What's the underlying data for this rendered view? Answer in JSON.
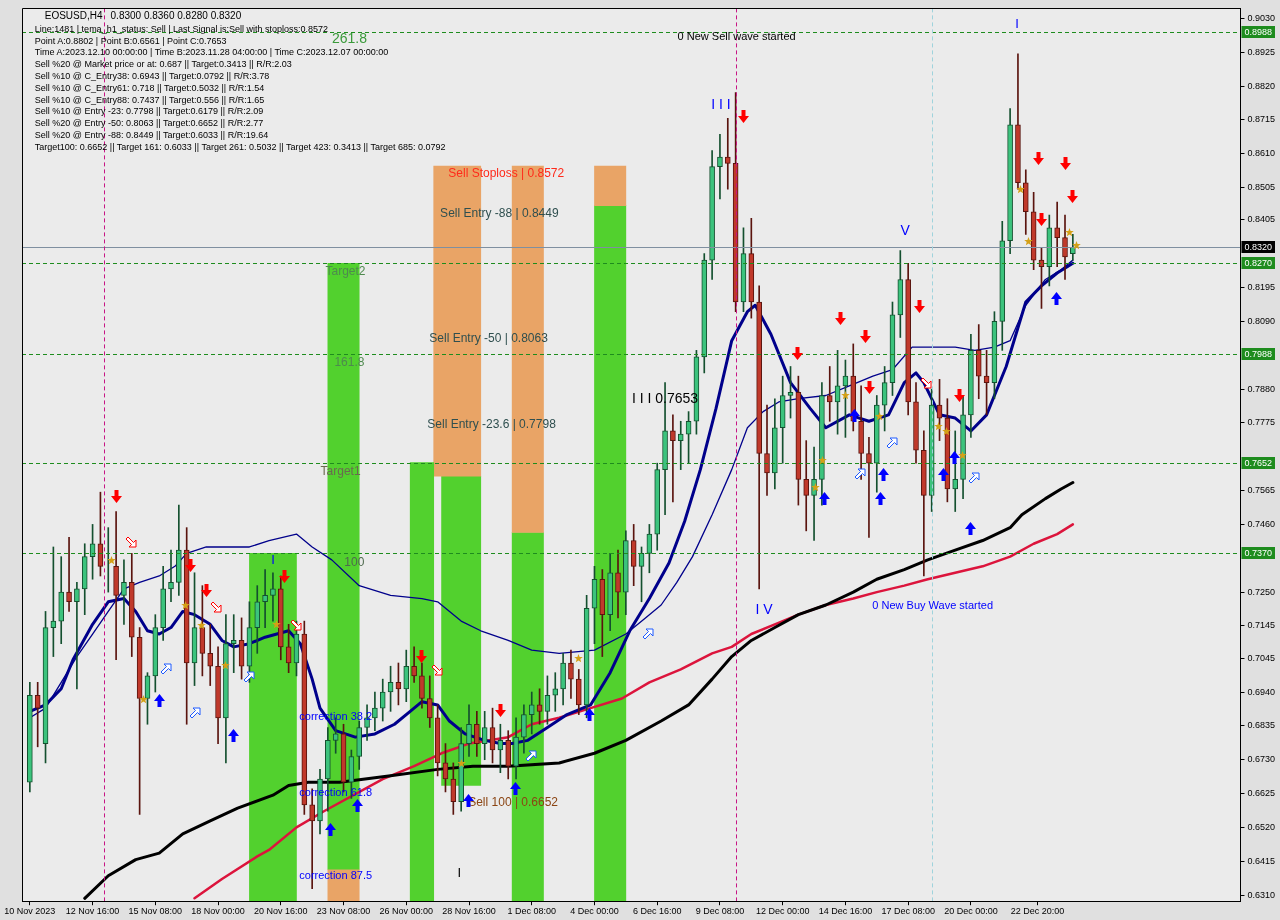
{
  "chart_data": {
    "type": "candlestick",
    "title": "EOSUSD,H4",
    "subtitle": "0.8300 0.8360 0.8280 0.8320",
    "x": [
      "2023-11-10T00:00",
      "2023-11-10T08:00",
      "2023-11-10T16:00",
      "2023-11-11T00:00",
      "2023-11-11T08:00",
      "2023-11-11T16:00",
      "2023-11-12T00:00",
      "2023-11-12T08:00",
      "2023-11-12T16:00",
      "2023-11-13T00:00",
      "2023-11-13T08:00",
      "2023-11-13T16:00",
      "2023-11-14T00:00",
      "2023-11-14T08:00",
      "2023-11-14T16:00",
      "2023-11-15T00:00",
      "2023-11-15T08:00",
      "2023-11-15T16:00",
      "2023-11-16T00:00",
      "2023-11-16T08:00",
      "2023-11-16T16:00",
      "2023-11-17T00:00",
      "2023-11-17T08:00",
      "2023-11-17T16:00",
      "2023-11-18T00:00",
      "2023-11-18T08:00",
      "2023-11-18T16:00",
      "2023-11-19T00:00",
      "2023-11-19T08:00",
      "2023-11-19T16:00",
      "2023-11-20T00:00",
      "2023-11-20T08:00",
      "2023-11-20T16:00",
      "2023-11-21T00:00",
      "2023-11-21T08:00",
      "2023-11-21T16:00",
      "2023-11-22T00:00",
      "2023-11-22T08:00",
      "2023-11-22T16:00",
      "2023-11-23T00:00",
      "2023-11-23T08:00",
      "2023-11-23T16:00",
      "2023-11-24T00:00",
      "2023-11-24T08:00",
      "2023-11-24T16:00",
      "2023-11-25T00:00",
      "2023-11-25T08:00",
      "2023-11-25T16:00",
      "2023-11-26T00:00",
      "2023-11-26T08:00",
      "2023-11-26T16:00",
      "2023-11-27T00:00",
      "2023-11-27T08:00",
      "2023-11-27T16:00",
      "2023-11-28T00:00",
      "2023-11-28T08:00",
      "2023-11-28T16:00",
      "2023-11-29T00:00",
      "2023-11-29T08:00",
      "2023-11-29T16:00",
      "2023-11-30T00:00",
      "2023-11-30T08:00",
      "2023-11-30T16:00",
      "2023-12-01T00:00",
      "2023-12-01T08:00",
      "2023-12-01T16:00",
      "2023-12-02T00:00",
      "2023-12-02T08:00",
      "2023-12-02T16:00",
      "2023-12-03T00:00",
      "2023-12-03T08:00",
      "2023-12-03T16:00",
      "2023-12-04T00:00",
      "2023-12-04T08:00",
      "2023-12-04T16:00",
      "2023-12-05T00:00",
      "2023-12-05T08:00",
      "2023-12-05T16:00",
      "2023-12-06T00:00",
      "2023-12-06T08:00",
      "2023-12-06T16:00",
      "2023-12-07T00:00",
      "2023-12-07T08:00",
      "2023-12-07T16:00",
      "2023-12-08T00:00",
      "2023-12-08T08:00",
      "2023-12-08T16:00",
      "2023-12-09T00:00",
      "2023-12-09T08:00",
      "2023-12-09T16:00",
      "2023-12-10T00:00",
      "2023-12-10T08:00",
      "2023-12-10T16:00",
      "2023-12-11T00:00",
      "2023-12-11T08:00",
      "2023-12-11T16:00",
      "2023-12-12T00:00",
      "2023-12-12T08:00",
      "2023-12-12T16:00",
      "2023-12-13T00:00",
      "2023-12-13T08:00",
      "2023-12-13T16:00",
      "2023-12-14T00:00",
      "2023-12-14T08:00",
      "2023-12-14T16:00",
      "2023-12-15T00:00",
      "2023-12-15T08:00",
      "2023-12-15T16:00",
      "2023-12-16T00:00",
      "2023-12-16T08:00",
      "2023-12-16T16:00",
      "2023-12-17T00:00",
      "2023-12-17T08:00",
      "2023-12-17T16:00",
      "2023-12-18T00:00",
      "2023-12-18T08:00",
      "2023-12-18T16:00",
      "2023-12-19T00:00",
      "2023-12-19T08:00",
      "2023-12-19T16:00",
      "2023-12-20T00:00",
      "2023-12-20T08:00",
      "2023-12-20T16:00",
      "2023-12-21T00:00",
      "2023-12-21T08:00",
      "2023-12-21T16:00",
      "2023-12-22T00:00",
      "2023-12-22T08:00",
      "2023-12-22T16:00",
      "2023-12-23T00:00",
      "2023-12-23T08:00",
      "2023-12-23T16:00",
      "2023-12-24T00:00",
      "2023-12-24T08:00"
    ],
    "ohlc": [
      [
        0.666,
        0.697,
        0.663,
        0.693
      ],
      [
        0.693,
        0.697,
        0.677,
        0.689
      ],
      [
        0.678,
        0.719,
        0.672,
        0.714
      ],
      [
        0.714,
        0.739,
        0.705,
        0.716
      ],
      [
        0.716,
        0.736,
        0.709,
        0.725
      ],
      [
        0.725,
        0.742,
        0.719,
        0.722
      ],
      [
        0.722,
        0.728,
        0.695,
        0.726
      ],
      [
        0.726,
        0.74,
        0.718,
        0.736
      ],
      [
        0.736,
        0.746,
        0.729,
        0.74
      ],
      [
        0.74,
        0.756,
        0.73,
        0.733
      ],
      [
        0.733,
        0.745,
        0.725,
        0.733
      ],
      [
        0.733,
        0.75,
        0.704,
        0.724
      ],
      [
        0.724,
        0.735,
        0.715,
        0.728
      ],
      [
        0.728,
        0.737,
        0.705,
        0.711
      ],
      [
        0.711,
        0.714,
        0.656,
        0.692
      ],
      [
        0.692,
        0.7,
        0.684,
        0.699
      ],
      [
        0.699,
        0.718,
        0.694,
        0.714
      ],
      [
        0.714,
        0.733,
        0.71,
        0.726
      ],
      [
        0.726,
        0.738,
        0.722,
        0.728
      ],
      [
        0.728,
        0.752,
        0.724,
        0.738
      ],
      [
        0.738,
        0.745,
        0.684,
        0.703
      ],
      [
        0.703,
        0.731,
        0.696,
        0.714
      ],
      [
        0.714,
        0.727,
        0.699,
        0.706
      ],
      [
        0.706,
        0.715,
        0.696,
        0.702
      ],
      [
        0.702,
        0.708,
        0.678,
        0.686
      ],
      [
        0.686,
        0.718,
        0.672,
        0.709
      ],
      [
        0.709,
        0.718,
        0.7,
        0.71
      ],
      [
        0.71,
        0.717,
        0.698,
        0.702
      ],
      [
        0.702,
        0.722,
        0.697,
        0.714
      ],
      [
        0.714,
        0.727,
        0.706,
        0.722
      ],
      [
        0.722,
        0.732,
        0.714,
        0.724
      ],
      [
        0.724,
        0.731,
        0.716,
        0.726
      ],
      [
        0.726,
        0.73,
        0.704,
        0.708
      ],
      [
        0.708,
        0.715,
        0.7,
        0.703
      ],
      [
        0.703,
        0.716,
        0.699,
        0.712
      ],
      [
        0.712,
        0.716,
        0.656,
        0.659
      ],
      [
        0.659,
        0.664,
        0.633,
        0.654
      ],
      [
        0.654,
        0.67,
        0.65,
        0.667
      ],
      [
        0.667,
        0.683,
        0.657,
        0.679
      ],
      [
        0.679,
        0.686,
        0.675,
        0.681
      ],
      [
        0.681,
        0.684,
        0.663,
        0.666
      ],
      [
        0.666,
        0.676,
        0.661,
        0.674
      ],
      [
        0.674,
        0.685,
        0.67,
        0.683
      ],
      [
        0.683,
        0.69,
        0.679,
        0.686
      ],
      [
        0.686,
        0.694,
        0.682,
        0.689
      ],
      [
        0.689,
        0.698,
        0.685,
        0.694
      ],
      [
        0.694,
        0.702,
        0.688,
        0.697
      ],
      [
        0.697,
        0.703,
        0.69,
        0.695
      ],
      [
        0.695,
        0.707,
        0.691,
        0.702
      ],
      [
        0.702,
        0.708,
        0.697,
        0.699
      ],
      [
        0.699,
        0.703,
        0.689,
        0.692
      ],
      [
        0.692,
        0.699,
        0.683,
        0.686
      ],
      [
        0.686,
        0.69,
        0.668,
        0.672
      ],
      [
        0.672,
        0.678,
        0.663,
        0.667
      ],
      [
        0.667,
        0.672,
        0.656,
        0.66
      ],
      [
        0.66,
        0.683,
        0.657,
        0.678
      ],
      [
        0.678,
        0.69,
        0.674,
        0.684
      ],
      [
        0.684,
        0.688,
        0.674,
        0.678
      ],
      [
        0.678,
        0.688,
        0.673,
        0.683
      ],
      [
        0.683,
        0.689,
        0.672,
        0.676
      ],
      [
        0.676,
        0.684,
        0.669,
        0.679
      ],
      [
        0.679,
        0.682,
        0.667,
        0.671
      ],
      [
        0.671,
        0.686,
        0.667,
        0.68
      ],
      [
        0.68,
        0.69,
        0.675,
        0.687
      ],
      [
        0.687,
        0.694,
        0.681,
        0.69
      ],
      [
        0.69,
        0.695,
        0.684,
        0.688
      ],
      [
        0.688,
        0.699,
        0.684,
        0.693
      ],
      [
        0.693,
        0.7,
        0.688,
        0.695
      ],
      [
        0.695,
        0.706,
        0.69,
        0.703
      ],
      [
        0.703,
        0.707,
        0.692,
        0.698
      ],
      [
        0.698,
        0.701,
        0.687,
        0.69
      ],
      [
        0.69,
        0.724,
        0.686,
        0.72
      ],
      [
        0.72,
        0.733,
        0.709,
        0.729
      ],
      [
        0.729,
        0.732,
        0.705,
        0.718
      ],
      [
        0.718,
        0.737,
        0.713,
        0.731
      ],
      [
        0.731,
        0.738,
        0.717,
        0.725
      ],
      [
        0.725,
        0.744,
        0.718,
        0.741
      ],
      [
        0.741,
        0.746,
        0.727,
        0.733
      ],
      [
        0.733,
        0.739,
        0.722,
        0.737
      ],
      [
        0.737,
        0.746,
        0.731,
        0.743
      ],
      [
        0.743,
        0.765,
        0.738,
        0.763
      ],
      [
        0.763,
        0.79,
        0.749,
        0.775
      ],
      [
        0.775,
        0.78,
        0.753,
        0.772
      ],
      [
        0.772,
        0.778,
        0.763,
        0.774
      ],
      [
        0.774,
        0.781,
        0.765,
        0.778
      ],
      [
        0.778,
        0.8,
        0.774,
        0.798
      ],
      [
        0.798,
        0.83,
        0.793,
        0.828
      ],
      [
        0.828,
        0.862,
        0.822,
        0.857
      ],
      [
        0.857,
        0.867,
        0.847,
        0.86
      ],
      [
        0.86,
        0.872,
        0.85,
        0.858
      ],
      [
        0.858,
        0.88,
        0.812,
        0.815
      ],
      [
        0.815,
        0.838,
        0.812,
        0.83
      ],
      [
        0.83,
        0.841,
        0.81,
        0.815
      ],
      [
        0.815,
        0.82,
        0.726,
        0.768
      ],
      [
        0.768,
        0.783,
        0.755,
        0.762
      ],
      [
        0.762,
        0.785,
        0.757,
        0.776
      ],
      [
        0.776,
        0.792,
        0.765,
        0.786
      ],
      [
        0.786,
        0.795,
        0.779,
        0.787
      ],
      [
        0.787,
        0.792,
        0.752,
        0.76
      ],
      [
        0.76,
        0.772,
        0.744,
        0.755
      ],
      [
        0.755,
        0.77,
        0.741,
        0.76
      ],
      [
        0.76,
        0.79,
        0.752,
        0.786
      ],
      [
        0.786,
        0.795,
        0.778,
        0.784
      ],
      [
        0.784,
        0.8,
        0.774,
        0.789
      ],
      [
        0.789,
        0.797,
        0.773,
        0.792
      ],
      [
        0.792,
        0.802,
        0.775,
        0.778
      ],
      [
        0.778,
        0.789,
        0.76,
        0.768
      ],
      [
        0.768,
        0.773,
        0.742,
        0.765
      ],
      [
        0.765,
        0.786,
        0.756,
        0.783
      ],
      [
        0.783,
        0.795,
        0.775,
        0.79
      ],
      [
        0.79,
        0.815,
        0.786,
        0.811
      ],
      [
        0.811,
        0.831,
        0.804,
        0.822
      ],
      [
        0.822,
        0.827,
        0.78,
        0.784
      ],
      [
        0.784,
        0.79,
        0.765,
        0.769
      ],
      [
        0.769,
        0.775,
        0.73,
        0.755
      ],
      [
        0.755,
        0.788,
        0.75,
        0.783
      ],
      [
        0.783,
        0.791,
        0.772,
        0.779
      ],
      [
        0.779,
        0.785,
        0.753,
        0.757
      ],
      [
        0.757,
        0.775,
        0.75,
        0.76
      ],
      [
        0.76,
        0.786,
        0.754,
        0.78
      ],
      [
        0.78,
        0.805,
        0.773,
        0.8
      ],
      [
        0.8,
        0.808,
        0.785,
        0.792
      ],
      [
        0.792,
        0.8,
        0.78,
        0.79
      ],
      [
        0.79,
        0.812,
        0.785,
        0.809
      ],
      [
        0.809,
        0.84,
        0.8,
        0.834
      ],
      [
        0.834,
        0.875,
        0.83,
        0.87
      ],
      [
        0.87,
        0.892,
        0.85,
        0.852
      ],
      [
        0.852,
        0.856,
        0.836,
        0.843
      ],
      [
        0.843,
        0.849,
        0.825,
        0.828
      ],
      [
        0.828,
        0.832,
        0.813,
        0.826
      ],
      [
        0.826,
        0.842,
        0.82,
        0.838
      ],
      [
        0.838,
        0.846,
        0.826,
        0.835
      ],
      [
        0.835,
        0.842,
        0.822,
        0.829
      ],
      [
        0.83,
        0.836,
        0.828,
        0.832
      ]
    ],
    "series": [
      {
        "type": "bar",
        "color": "#52d12e",
        "x": [
          "2023-11-20T08:00"
        ],
        "base": [
          0.6291
        ],
        "values": [
          0.1079
        ]
      },
      {
        "type": "bar",
        "color": "#52d12e",
        "x": [
          "2023-11-23T08:00"
        ],
        "base": [
          0.639
        ],
        "values": [
          0.188
        ]
      },
      {
        "type": "bar",
        "color": "#e9a466",
        "x": [
          "2023-11-23T08:00"
        ],
        "base": [
          0.6291
        ],
        "values": [
          0.0099
        ]
      },
      {
        "type": "bar",
        "color": "#52d12e",
        "x": [
          "2023-11-26T16:00"
        ],
        "base": [
          0.6291
        ],
        "values": [
          0.1361
        ]
      },
      {
        "type": "bar",
        "color": "#e9a466",
        "x": [
          "2023-11-28T04:00"
        ],
        "base": [
          0.761
        ],
        "values": [
          0.0962
        ]
      },
      {
        "type": "bar",
        "color": "#52d12e",
        "x": [
          "2023-11-28T08:00"
        ],
        "base": [
          0.665
        ],
        "values": [
          0.096
        ]
      },
      {
        "type": "bar",
        "color": "#e9a466",
        "x": [
          "2023-12-01T04:00"
        ],
        "base": [
          0.7435
        ],
        "values": [
          0.1137
        ]
      },
      {
        "type": "bar",
        "color": "#52d12e",
        "x": [
          "2023-12-01T04:00"
        ],
        "base": [
          0.6291
        ],
        "values": [
          0.1144
        ]
      },
      {
        "type": "bar",
        "color": "#e9a466",
        "x": [
          "2023-12-04T16:00"
        ],
        "base": [
          0.8449
        ],
        "values": [
          0.0123
        ]
      },
      {
        "type": "bar",
        "color": "#52d12e",
        "x": [
          "2023-12-04T16:00"
        ],
        "base": [
          0.6291
        ],
        "values": [
          0.2158
        ]
      },
      {
        "type": "line",
        "color": "#00008b",
        "x": [
          "2023-11-10T00:00",
          "2023-11-10T16:00",
          "2023-11-11T08:00",
          "2023-11-11T20:00",
          "2023-11-12T16:00",
          "2023-11-13T08:00",
          "2023-11-14T00:00",
          "2023-11-14T12:00",
          "2023-11-15T00:00",
          "2023-11-15T12:00",
          "2023-11-16T00:00",
          "2023-11-16T12:00",
          "2023-11-17T00:00",
          "2023-11-17T16:00",
          "2023-11-18T04:00",
          "2023-11-18T16:00",
          "2023-11-19T08:00",
          "2023-11-20T00:00",
          "2023-11-21T00:00",
          "2023-11-21T12:00",
          "2023-11-22T00:00",
          "2023-11-22T08:00",
          "2023-11-23T00:00",
          "2023-11-23T20:00",
          "2023-11-24T16:00",
          "2023-11-25T12:00",
          "2023-11-26T04:00",
          "2023-11-26T16:00",
          "2023-11-27T08:00",
          "2023-11-27T20:00",
          "2023-11-28T12:00",
          "2023-11-29T08:00",
          "2023-11-30T00:00",
          "2023-11-30T12:00",
          "2023-12-01T04:00",
          "2023-12-02T00:00",
          "2023-12-02T20:00",
          "2023-12-03T20:00",
          "2023-12-04T16:00",
          "2023-12-05T12:00",
          "2023-12-06T08:00",
          "2023-12-07T04:00",
          "2023-12-07T20:00",
          "2023-12-08T12:00",
          "2023-12-09T04:00",
          "2023-12-09T20:00",
          "2023-12-10T12:00",
          "2023-12-10T20:00",
          "2023-12-11T12:00",
          "2023-12-12T08:00",
          "2023-12-13T04:00",
          "2023-12-13T20:00",
          "2023-12-14T20:00",
          "2023-12-15T16:00",
          "2023-12-16T12:00",
          "2023-12-17T04:00",
          "2023-12-17T16:00",
          "2023-12-18T00:00",
          "2023-12-18T16:00",
          "2023-12-19T08:00",
          "2023-12-20T00:00",
          "2023-12-20T16:00",
          "2023-12-21T12:00",
          "2023-12-22T00:00",
          "2023-12-22T08:00",
          "2023-12-23T00:00",
          "2023-12-23T16:00",
          "2023-12-24T08:00"
        ],
        "values": [
          0.688,
          0.69,
          0.695,
          0.704,
          0.715,
          0.722,
          0.723,
          0.719,
          0.713,
          0.712,
          0.714,
          0.719,
          0.718,
          0.715,
          0.71,
          0.708,
          0.709,
          0.711,
          0.713,
          0.709,
          0.698,
          0.689,
          0.682,
          0.68,
          0.681,
          0.684,
          0.688,
          0.691,
          0.69,
          0.685,
          0.681,
          0.679,
          0.678,
          0.678,
          0.679,
          0.683,
          0.687,
          0.69,
          0.7,
          0.713,
          0.723,
          0.734,
          0.747,
          0.763,
          0.782,
          0.803,
          0.812,
          0.814,
          0.805,
          0.79,
          0.782,
          0.776,
          0.78,
          0.778,
          0.78,
          0.79,
          0.793,
          0.79,
          0.78,
          0.779,
          0.775,
          0.78,
          0.795,
          0.807,
          0.815,
          0.82,
          0.824,
          0.827
        ]
      },
      {
        "type": "line",
        "color": "#00008b",
        "x": [
          "2023-11-10T00:00",
          "2023-11-10T16:00",
          "2023-11-11T08:00",
          "2023-11-12T00:00",
          "2023-11-12T16:00",
          "2023-11-13T08:00",
          "2023-11-14T00:00",
          "2023-11-14T16:00",
          "2023-11-15T12:00",
          "2023-11-16T04:00",
          "2023-11-16T16:00",
          "2023-11-17T12:00",
          "2023-11-18T12:00",
          "2023-11-19T08:00",
          "2023-11-20T04:00",
          "2023-11-21T08:00",
          "2023-11-22T00:00",
          "2023-11-22T20:00",
          "2023-11-24T00:00",
          "2023-11-25T08:00",
          "2023-11-26T16:00",
          "2023-11-27T08:00",
          "2023-11-28T08:00",
          "2023-11-29T04:00",
          "2023-11-30T08:00",
          "2023-12-01T08:00",
          "2023-12-02T12:00",
          "2023-12-04T00:00",
          "2023-12-05T08:00",
          "2023-12-06T04:00",
          "2023-12-06T20:00",
          "2023-12-07T12:00",
          "2023-12-08T04:00",
          "2023-12-09T00:00",
          "2023-12-09T20:00",
          "2023-12-10T12:00",
          "2023-12-11T04:00",
          "2023-12-11T20:00",
          "2023-12-12T16:00",
          "2023-12-13T20:00",
          "2023-12-14T20:00",
          "2023-12-15T20:00",
          "2023-12-16T16:00",
          "2023-12-17T12:00",
          "2023-12-18T12:00",
          "2023-12-19T08:00",
          "2023-12-20T04:00",
          "2023-12-21T00:00",
          "2023-12-21T16:00",
          "2023-12-22T08:00",
          "2023-12-23T04:00",
          "2023-12-23T20:00",
          "2023-12-24T08:00"
        ],
        "values": [
          0.686,
          0.689,
          0.697,
          0.705,
          0.712,
          0.719,
          0.726,
          0.728,
          0.73,
          0.733,
          0.737,
          0.739,
          0.739,
          0.739,
          0.741,
          0.743,
          0.739,
          0.735,
          0.727,
          0.724,
          0.723,
          0.722,
          0.716,
          0.713,
          0.71,
          0.707,
          0.706,
          0.707,
          0.712,
          0.717,
          0.721,
          0.728,
          0.736,
          0.749,
          0.763,
          0.776,
          0.781,
          0.784,
          0.785,
          0.786,
          0.789,
          0.792,
          0.794,
          0.801,
          0.801,
          0.801,
          0.8,
          0.801,
          0.803,
          0.814,
          0.822,
          0.825,
          0.828
        ]
      },
      {
        "type": "line",
        "color": "#000000",
        "x": [
          "2023-11-12T08:00",
          "2023-11-13T08:00",
          "2023-11-14T12:00",
          "2023-11-15T12:00",
          "2023-11-16T12:00",
          "2023-11-17T16:00",
          "2023-11-18T20:00",
          "2023-11-20T08:00",
          "2023-11-21T00:00",
          "2023-11-21T20:00",
          "2023-11-23T04:00",
          "2023-11-25T08:00",
          "2023-11-27T08:00",
          "2023-11-28T20:00",
          "2023-11-30T08:00",
          "2023-12-02T12:00",
          "2023-12-04T00:00",
          "2023-12-05T08:00",
          "2023-12-06T20:00",
          "2023-12-08T00:00",
          "2023-12-09T00:00",
          "2023-12-09T20:00",
          "2023-12-10T16:00",
          "2023-12-11T16:00",
          "2023-12-12T16:00",
          "2023-12-13T20:00",
          "2023-12-15T00:00",
          "2023-12-16T00:00",
          "2023-12-17T04:00",
          "2023-12-18T04:00",
          "2023-12-19T08:00",
          "2023-12-20T12:00",
          "2023-12-21T16:00",
          "2023-12-22T04:00",
          "2023-12-23T04:00",
          "2023-12-23T20:00",
          "2023-12-24T08:00"
        ],
        "values": [
          0.63,
          0.637,
          0.642,
          0.644,
          0.65,
          0.654,
          0.658,
          0.662,
          0.665,
          0.666,
          0.666,
          0.668,
          0.67,
          0.671,
          0.671,
          0.672,
          0.675,
          0.679,
          0.685,
          0.69,
          0.698,
          0.705,
          0.71,
          0.714,
          0.718,
          0.721,
          0.725,
          0.729,
          0.732,
          0.735,
          0.738,
          0.741,
          0.745,
          0.749,
          0.754,
          0.757,
          0.759
        ]
      },
      {
        "type": "line",
        "color": "#dc143c",
        "x": [
          "2023-11-17T00:00",
          "2023-11-18T04:00",
          "2023-11-19T16:00",
          "2023-11-20T04:00",
          "2023-11-21T08:00",
          "2023-11-22T12:00",
          "2023-11-25T00:00",
          "2023-11-26T08:00",
          "2023-11-27T12:00",
          "2023-11-28T16:00",
          "2023-11-30T08:00",
          "2023-12-01T08:00",
          "2023-12-02T12:00",
          "2023-12-03T20:00",
          "2023-12-05T04:00",
          "2023-12-06T08:00",
          "2023-12-07T16:00",
          "2023-12-09T00:00",
          "2023-12-09T20:00",
          "2023-12-10T16:00",
          "2023-12-11T16:00",
          "2023-12-12T16:00",
          "2023-12-13T20:00",
          "2023-12-15T00:00",
          "2023-12-16T00:00",
          "2023-12-17T04:00",
          "2023-12-18T04:00",
          "2023-12-19T08:00",
          "2023-12-20T12:00",
          "2023-12-21T16:00",
          "2023-12-22T16:00",
          "2023-12-23T16:00",
          "2023-12-24T08:00"
        ],
        "values": [
          0.63,
          0.636,
          0.643,
          0.645,
          0.652,
          0.657,
          0.667,
          0.671,
          0.675,
          0.678,
          0.68,
          0.684,
          0.686,
          0.689,
          0.692,
          0.697,
          0.701,
          0.706,
          0.708,
          0.712,
          0.715,
          0.718,
          0.721,
          0.723,
          0.725,
          0.727,
          0.729,
          0.731,
          0.733,
          0.736,
          0.74,
          0.743,
          0.746
        ]
      }
    ],
    "xlim": [
      "2023-11-09T16:00",
      "2023-12-31T11:00"
    ],
    "xticks": [
      {
        "value": "2023-11-10T00:00",
        "label": "10 Nov 2023"
      },
      {
        "value": "2023-11-12T16:00",
        "label": "12 Nov 16:00"
      },
      {
        "value": "2023-11-15T08:00",
        "label": "15 Nov 08:00"
      },
      {
        "value": "2023-11-18T00:00",
        "label": "18 Nov 00:00"
      },
      {
        "value": "2023-11-20T16:00",
        "label": "20 Nov 16:00"
      },
      {
        "value": "2023-11-23T08:00",
        "label": "23 Nov 08:00"
      },
      {
        "value": "2023-11-26T00:00",
        "label": "26 Nov 00:00"
      },
      {
        "value": "2023-11-28T16:00",
        "label": "28 Nov 16:00"
      },
      {
        "value": "2023-12-01T08:00",
        "label": "1 Dec 08:00"
      },
      {
        "value": "2023-12-04T00:00",
        "label": "4 Dec 00:00"
      },
      {
        "value": "2023-12-06T16:00",
        "label": "6 Dec 16:00"
      },
      {
        "value": "2023-12-09T08:00",
        "label": "9 Dec 08:00"
      },
      {
        "value": "2023-12-12T00:00",
        "label": "12 Dec 00:00"
      },
      {
        "value": "2023-12-14T16:00",
        "label": "14 Dec 16:00"
      },
      {
        "value": "2023-12-17T08:00",
        "label": "17 Dec 08:00"
      },
      {
        "value": "2023-12-20T00:00",
        "label": "20 Dec 00:00"
      },
      {
        "value": "2023-12-22T20:00",
        "label": "22 Dec 20:00"
      }
    ],
    "ylim": [
      0.6291,
      0.9061
    ],
    "yticks": [
      {
        "value": 0.903,
        "label": "0.9030"
      },
      {
        "value": 0.8925,
        "label": "0.8925"
      },
      {
        "value": 0.882,
        "label": "0.8820"
      },
      {
        "value": 0.8715,
        "label": "0.8715"
      },
      {
        "value": 0.861,
        "label": "0.8610"
      },
      {
        "value": 0.8505,
        "label": "0.8505"
      },
      {
        "value": 0.8405,
        "label": "0.8405"
      },
      {
        "value": 0.8195,
        "label": "0.8195"
      },
      {
        "value": 0.809,
        "label": "0.8090"
      },
      {
        "value": 0.788,
        "label": "0.7880"
      },
      {
        "value": 0.7775,
        "label": "0.7775"
      },
      {
        "value": 0.7565,
        "label": "0.7565"
      },
      {
        "value": 0.746,
        "label": "0.7460"
      },
      {
        "value": 0.725,
        "label": "0.7250"
      },
      {
        "value": 0.7145,
        "label": "0.7145"
      },
      {
        "value": 0.7045,
        "label": "0.7045"
      },
      {
        "value": 0.694,
        "label": "0.6940"
      },
      {
        "value": 0.6835,
        "label": "0.6835"
      },
      {
        "value": 0.673,
        "label": "0.6730"
      },
      {
        "value": 0.6625,
        "label": "0.6625"
      },
      {
        "value": 0.652,
        "label": "0.6520"
      },
      {
        "value": 0.6415,
        "label": "0.6415"
      },
      {
        "value": 0.631,
        "label": "0.6310"
      }
    ],
    "ref_lines": [
      {
        "axis": "y",
        "value": 0.8988,
        "label": "0.8988",
        "color": "#1e8c1e",
        "line_style": "dashed"
      },
      {
        "axis": "y",
        "value": 0.827,
        "label": "0.8270",
        "color": "#1e8c1e",
        "line_style": "dashed"
      },
      {
        "axis": "y",
        "value": 0.7988,
        "label": "0.7988",
        "color": "#1e8c1e",
        "line_style": "dashed"
      },
      {
        "axis": "y",
        "value": 0.7652,
        "label": "0.7652",
        "color": "#1e8c1e",
        "line_style": "dashed"
      },
      {
        "axis": "y",
        "value": 0.737,
        "label": "0.7370",
        "color": "#1e8c1e",
        "line_style": "dashed"
      },
      {
        "axis": "y",
        "value": 0.832,
        "label": "0.8320",
        "color": "#7f8fa0",
        "line_style": "solid"
      },
      {
        "axis": "x",
        "value": "2023-11-13T04:00",
        "color": "#c71585",
        "line_style": "dashed"
      },
      {
        "axis": "x",
        "value": "2023-12-10T00:00",
        "color": "#c71585",
        "line_style": "dashed"
      },
      {
        "axis": "x",
        "value": "2023-12-18T08:00",
        "color": "#9fd3dc",
        "line_style": "dashed"
      }
    ],
    "annotations": [
      "Line:1481 | tema_h1_status: Sell | Last Signal is:Sell with stoploss:0.8572",
      "Point A:0.8802 | Point B:0.6561 | Point C:0.7653",
      "Time A:2023.12.10 00:00:00 | Time B:2023.11.28 04:00:00 | Time C:2023.12.07 00:00:00",
      "Sell %20 @ Market price or at: 0.687 || Target:0.3413 || R/R:2.03",
      "Sell %10 @ C_Entry38: 0.6943 || Target:0.0792 || R/R:3.78",
      "Sell %10 @ C_Entry61: 0.718 || Target:0.5032 || R/R:1.54",
      "Sell %10 @ C_Entry88: 0.7437 || Target:0.556 || R/R:1.65",
      "Sell %10 @ Entry -23: 0.7798 || Target:0.6179 || R/R:2.09",
      "Sell %20 @ Entry -50: 0.8063 || Target:0.6652 || R/R:2.77",
      "Sell %20 @ Entry -88: 0.8449 || Target:0.6033 || R/R:19.64",
      "Target100: 0.6652 || Target 161: 0.6033 || Target 261: 0.5032 || Target 423: 0.3413 || Target 685: 0.0792",
      "261.8",
      "Target2",
      "161.8",
      "Target1",
      "100",
      "Sell Stoploss | 0.8572",
      "Sell Entry -88 | 0.8449",
      "Sell Entry -50 | 0.8063",
      "Sell Entry -23.6 | 0.7798",
      "Sell 100 | 0.6652",
      "correction 38.2",
      "correction 61.8",
      "correction 87.5",
      "I I I 0.7653",
      "I I I",
      "V",
      "I V",
      "0 New Sell wave started",
      "0 New Buy Wave started",
      "I",
      "I",
      "I"
    ]
  }
}
